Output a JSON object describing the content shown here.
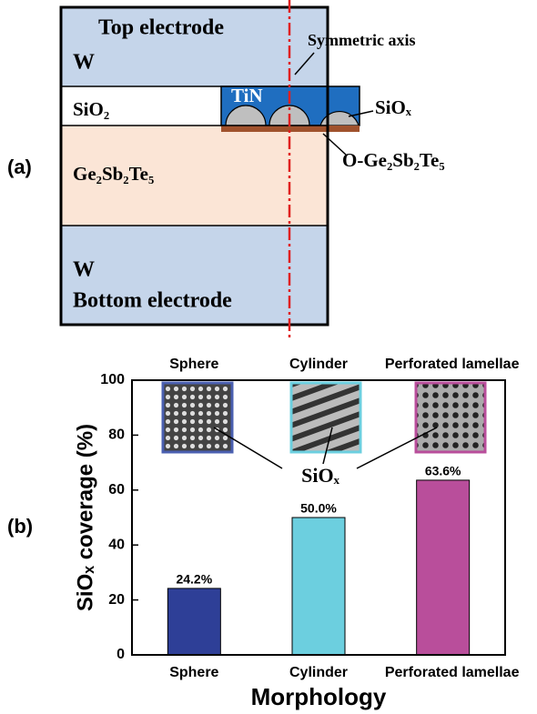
{
  "panel_a": {
    "label": "(a)",
    "top_electrode": "Top electrode",
    "top_w": "W",
    "axis_label": "Symmetric axis",
    "sio2": "SiO₂",
    "tin": "TiN",
    "siox": "SiOₓ",
    "o_gst": "O-Ge₂Sb₂Te₅",
    "gst": "Ge₂Sb₂Te₅",
    "bottom_w": "W",
    "bottom_electrode": "Bottom electrode"
  },
  "chart_data": {
    "type": "bar",
    "panel_label": "(b)",
    "x_label": "Morphology",
    "y_label": "SiOₓ coverage (%)",
    "inset_label": "SiOₓ",
    "categories": [
      "Sphere",
      "Cylinder",
      "Perforated lamellae"
    ],
    "values": [
      24.2,
      50.0,
      63.6
    ],
    "value_labels": [
      "24.2%",
      "50.0%",
      "63.6%"
    ],
    "colors": [
      "#2e3f97",
      "#6ccfdf",
      "#b94e9b"
    ],
    "ylim": [
      0,
      100
    ],
    "yticks": [
      0,
      20,
      40,
      60,
      80,
      100
    ]
  }
}
